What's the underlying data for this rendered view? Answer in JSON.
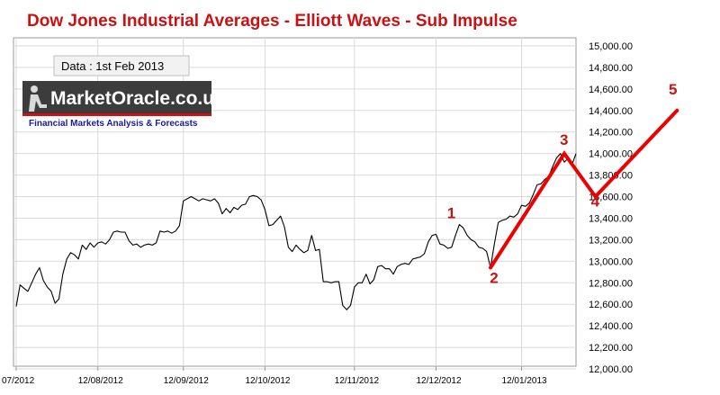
{
  "chart_data": {
    "type": "line",
    "title": "Dow Jones Industrial Averages  - Elliott Waves   - Sub Impulse",
    "ylim": [
      12000,
      15000
    ],
    "y_ticks": [
      "15,000.00",
      "14,800.00",
      "14,600.00",
      "14,400.00",
      "14,200.00",
      "14,000.00",
      "13,800.00",
      "13,600.00",
      "13,400.00",
      "13,200.00",
      "13,000.00",
      "12,800.00",
      "12,600.00",
      "12,400.00",
      "12,200.00",
      "12,000.00"
    ],
    "x_ticks": [
      "07/2012",
      "12/08/2012",
      "12/09/2012",
      "12/10/2012",
      "12/11/2012",
      "12/12/2012",
      "12/01/2013"
    ],
    "grid": true,
    "series": [
      {
        "values": [
          12580,
          12780,
          12750,
          12720,
          12800,
          12880,
          12940,
          12820,
          12760,
          12720,
          12610,
          12650,
          12880,
          13020,
          13080,
          13060,
          13020,
          13150,
          13110,
          13170,
          13130,
          13170,
          13180,
          13160,
          13200,
          13270,
          13280,
          13270,
          13270,
          13190,
          13150,
          13160,
          13130,
          13150,
          13160,
          13150,
          13170,
          13280,
          13270,
          13280,
          13260,
          13280,
          13330,
          13560,
          13580,
          13600,
          13580,
          13560,
          13580,
          13570,
          13560,
          13580,
          13540,
          13440,
          13490,
          13450,
          13500,
          13480,
          13520,
          13530,
          13600,
          13610,
          13600,
          13570,
          13480,
          13330,
          13340,
          13380,
          13420,
          13320,
          13130,
          13090,
          13150,
          13110,
          13080,
          13100,
          13240,
          13100,
          13110,
          12810,
          12810,
          12800,
          12810,
          12810,
          12590,
          12550,
          12590,
          12760,
          12800,
          12800,
          12880,
          12790,
          12830,
          12950,
          12960,
          12930,
          12930,
          12880,
          12950,
          12970,
          12980,
          12970,
          13020,
          13030,
          13040,
          13070,
          13180,
          13240,
          13250,
          13160,
          13150,
          13120,
          13130,
          13240,
          13340,
          13310,
          13240,
          13200,
          13180,
          13130,
          13120,
          13090,
          12940,
          13160,
          13360,
          13380,
          13390,
          13420,
          13410,
          13440,
          13520,
          13510,
          13540,
          13620,
          13710,
          13720,
          13760,
          13790,
          13880,
          13960,
          14000,
          13920,
          13960,
          13900,
          14000
        ]
      }
    ],
    "wave_path": [
      {
        "label": "2",
        "x": 122,
        "y": 12940
      },
      {
        "label": "3",
        "x": 141,
        "y": 14000
      },
      {
        "label": "4",
        "x": 149,
        "y": 13600
      },
      {
        "label": "5",
        "x": 170,
        "y": 14400
      }
    ],
    "annotations": [
      {
        "label": "1",
        "x": 112,
        "y": 13450
      },
      {
        "label": "2",
        "x": 123,
        "y": 12850
      },
      {
        "label": "3",
        "x": 141,
        "y": 14130
      },
      {
        "label": "4",
        "x": 149,
        "y": 13560
      },
      {
        "label": "5",
        "x": 169,
        "y": 14600
      }
    ],
    "data_box": "Data : 1st Feb 2013",
    "logo": {
      "name": "MarketOracle.co.uk",
      "tagline": "Financial Markets Analysis & Forecasts"
    },
    "line_color": "#000000",
    "wave_color": "#ee0000"
  }
}
